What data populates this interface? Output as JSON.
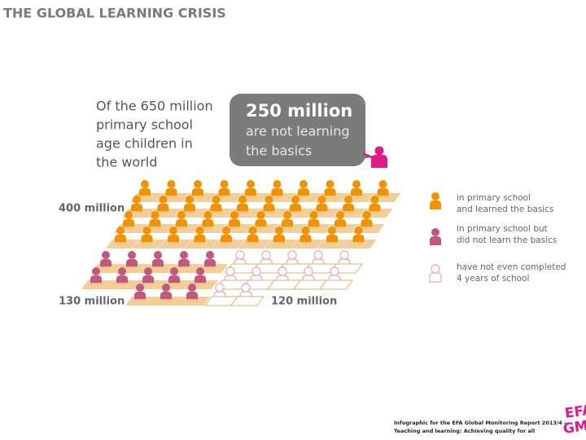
{
  "title": "THE GLOBAL LEARNING CRISIS",
  "intro": [
    "Of the 650 million",
    "primary school",
    "age children in",
    "the world"
  ],
  "callout": {
    "headline": "250 million",
    "text": [
      "are not learning",
      "the basics"
    ]
  },
  "groups": {
    "learned": "400 million",
    "not_learned": "130 million",
    "not_completed": "120 million"
  },
  "legend": [
    {
      "lines": [
        "in primary school",
        "and learned the basics"
      ]
    },
    {
      "lines": [
        "in primary school but",
        "did not learn the basics"
      ]
    },
    {
      "lines": [
        "have not even completed",
        "4 years of school"
      ]
    }
  ],
  "footer": [
    "Infographic for the EFA Global Monitoring Report 2013/4 -",
    "Teaching and learning: Achieving quality for all"
  ],
  "logo": [
    "EFA",
    "GMR"
  ]
}
